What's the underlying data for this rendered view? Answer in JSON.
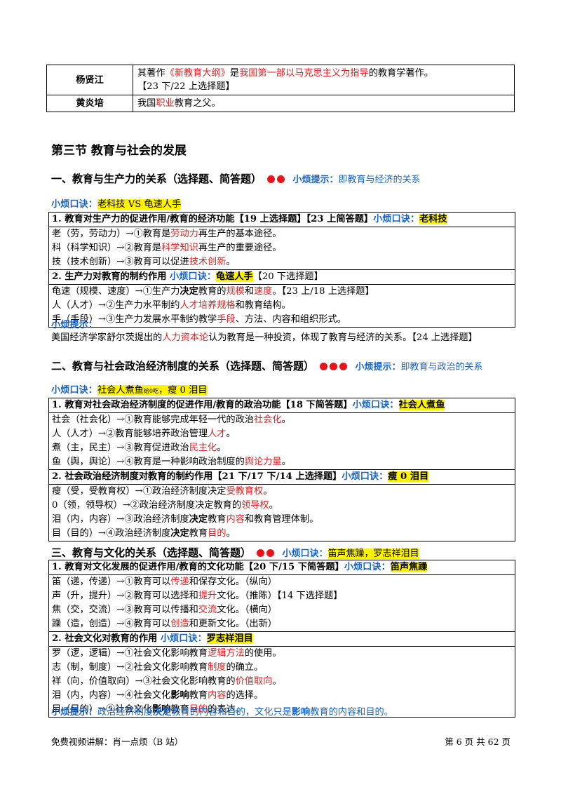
{
  "top_table": [
    {
      "name": "杨贤江",
      "text_a": "其著作",
      "text_b": "《新教育大纲》",
      "text_c": "是",
      "text_d": "我国第一部以马克思主义为指导",
      "text_e": "的教育学著作。",
      "text_f": "【23 下/22 上选择题】"
    },
    {
      "name": "黄炎培",
      "text_a": "我国",
      "text_b": "职业",
      "text_c": "教育之父。"
    }
  ],
  "section_title": "第三节  教育与社会的发展",
  "s1": {
    "title": "一、教育与生产力的关系（选择题、简答题）",
    "tip_label": "小烦提示：",
    "tip_text": "即教育与经济的关系",
    "mnemonic_label": "小烦口诀：",
    "mnemonic": "老科技 VS 龟速人手",
    "p1_head": "1. 教育对生产力的促进作用/教育的经济功能【19 上选择题】【23 上简答题】",
    "p1_label": "小烦口诀：",
    "p1_mn": "老科技",
    "p1_rows": [
      {
        "a": "老（劳，劳动力）→①教育是",
        "r": "劳动力",
        "c": "再生产的基本途径。"
      },
      {
        "a": "科（科学知识）→②教育是",
        "r": "科学知识",
        "c": "再生产的重要途径。"
      },
      {
        "a": "技（技术创新）→③教育可以促进",
        "r": "技术创新",
        "c": "。"
      }
    ],
    "p2_head": "2. 生产力对教育的制约作用 ",
    "p2_label": "小烦口诀：",
    "p2_mn": "龟速人手",
    "p2_tag": "【20 下选择题】",
    "p2_rows": [
      {
        "a": "龟速（规模、速度）→①生产力",
        "b": "决定",
        "c": "教育的",
        "r": "规模",
        "d": "和",
        "r2": "速度",
        "e": "。【23 上/18 上选择题】"
      },
      {
        "a": "人（人才）→②生产力水平制约",
        "r": "人才培养规格",
        "c": "和教育结构。"
      },
      {
        "a": "手（手段）→③生产力发展水平制约教学",
        "r": "手段",
        "c": "、方法、内容和组织形式。"
      }
    ],
    "note_label": "小烦提示：",
    "note_a": "美国经济学家舒尔茨提出的",
    "note_r": "人力资本论",
    "note_b": "认为教育是一种投资，体现了教育与经济的关系。【24 上选择题】"
  },
  "s2": {
    "title": "二、教育与社会政治经济制度的关系（选择题、简答题）",
    "tip_label": "小烦提示：",
    "tip_text": "即教育与政治的关系",
    "mnemonic_label": "小烦口诀：",
    "mnemonic_a": "社会人煮鱼",
    "mnemonic_small": "给0吃",
    "mnemonic_b": "，瘦 0 泪目",
    "p1_head": "1. 教育对社会政治经济制度的促进作用/教育的政治功能【18 下简答题】",
    "p1_label": "小烦口诀：",
    "p1_mn": "社会人煮鱼",
    "p1_rows": [
      {
        "a": "社会（社会化）→①教育能够完成年轻一代的政治",
        "r": "社会化",
        "c": "。"
      },
      {
        "a": "人（人才）→②教育能够培养政治管理",
        "r": "人才",
        "c": "。"
      },
      {
        "a": "煮（主，民主）→③教育促进政治",
        "r": "民主化",
        "c": "。"
      },
      {
        "a": "鱼（舆，舆论）→④教育是一种影响政治制度的",
        "r": "舆论力量",
        "c": "。"
      }
    ],
    "p2_head": "2. 社会政治经济制度对教育的制约作用【21 下/17 下/14 上选择题】",
    "p2_label": "小烦口诀：",
    "p2_mn": "瘦 0 泪目",
    "p2_rows": [
      {
        "a": "瘦（受，受教育权）→①政治经济制度决定",
        "r": "受教育权",
        "c": "。"
      },
      {
        "a": "0（领，领导权）→②政治经济制度决定教育的",
        "r": "领导权",
        "c": "。"
      },
      {
        "a": "泪（内，内容）→③政治经济制度",
        "b": "决定",
        "c": "教育",
        "r": "内容",
        "d": "和教育管理体制。"
      },
      {
        "a": "目（目的）→④政治经济制度",
        "b": "决定",
        "c": "教育",
        "r": "目的",
        "d": "。"
      }
    ]
  },
  "s3": {
    "title": "三、教育与文化的关系（选择题、简答题）",
    "mnemonic_label": "小烦口诀：",
    "mnemonic": "笛声焦躁，罗志祥泪目",
    "p1_head": "1. 教育对文化发展的促进作用/教育的文化功能【20 下/15 下简答题】",
    "p1_label": "小烦口诀：",
    "p1_mn": "笛声焦躁",
    "p1_rows": [
      {
        "a": "笛（递，传递）→①教育可以",
        "r": "传递",
        "c": "和保存文化。（纵向）"
      },
      {
        "a": "声（升，提升）→②教育可以选择和",
        "r": "提升",
        "c": "文化。（推陈）【14 下选择题】"
      },
      {
        "a": "焦（交，交流）→③教育可以传播和",
        "r": "交流",
        "c": "文化。（横向）"
      },
      {
        "a": "躁（造，创造）→④教育可以",
        "r": "创造",
        "c": "和更新文化。（出新）"
      }
    ],
    "p2_head": "2. 社会文化对教育的作用 ",
    "p2_label": "小烦口诀：",
    "p2_mn": "罗志祥泪目",
    "p2_rows": [
      {
        "a": "罗（逻，逻辑）→①社会文化影响教育",
        "r": "逻辑方法",
        "c": "的使用。"
      },
      {
        "a": "志（制，制度）→②社会文化影响教育",
        "r": "制度",
        "c": "的确立。"
      },
      {
        "a": "祥（向，价值取向）→③社会文化影响教育的",
        "r": "价值取向",
        "c": "。"
      },
      {
        "a": "泪（内，内容）→④社会文化",
        "b": "影响",
        "c": "教育",
        "r": "内容",
        "d": "的选择。"
      },
      {
        "a": "目（目的）→⑤社会文化",
        "b": "影响",
        "c": "教育",
        "r": "目的",
        "d": "的表达。"
      }
    ],
    "note_label": "小烦提示：",
    "note_a": "政治经济制度",
    "note_b": "决定",
    "note_c": "教育的内容和目的，文化只是",
    "note_d": "影响",
    "note_e": "教育的内容和目的。"
  },
  "footer": {
    "left": "免费视频讲解：肖一点烦（B 站）",
    "right": "第 6 页 共 62 页"
  }
}
